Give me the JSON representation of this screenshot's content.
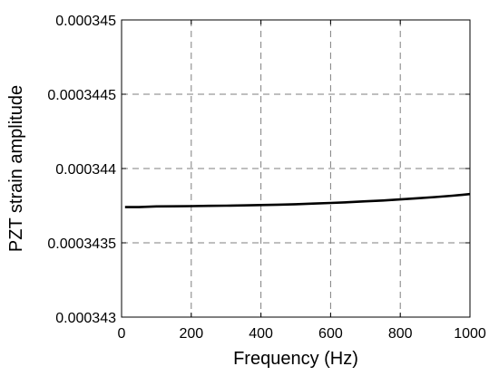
{
  "chart_data": {
    "type": "line",
    "title": "",
    "xlabel": "Frequency (Hz)",
    "ylabel": "PZT strain amplitude",
    "xlim": [
      0,
      1000
    ],
    "ylim": [
      0.000343,
      0.000345
    ],
    "xticks": [
      0,
      200,
      400,
      600,
      800,
      1000
    ],
    "xtick_labels": [
      "0",
      "200",
      "400",
      "600",
      "800",
      "1000"
    ],
    "yticks": [
      0.000343,
      0.0003435,
      0.000344,
      0.0003445,
      0.000345
    ],
    "ytick_labels": [
      "0.000343",
      "0.0003435",
      "0.000344",
      "0.0003445",
      "0.000345"
    ],
    "grid": true,
    "series": [
      {
        "color": "#000000",
        "x": [
          10,
          50,
          100,
          150,
          200,
          250,
          300,
          350,
          400,
          450,
          500,
          550,
          600,
          650,
          700,
          750,
          800,
          850,
          900,
          950,
          1000
        ],
        "y": [
          0.00034374,
          0.00034374,
          0.000343745,
          0.000343746,
          0.000343747,
          0.000343749,
          0.00034375,
          0.000343752,
          0.000343754,
          0.000343757,
          0.00034376,
          0.000343764,
          0.000343768,
          0.000343773,
          0.000343779,
          0.000343785,
          0.000343792,
          0.0003438,
          0.000343808,
          0.000343817,
          0.000343828
        ]
      }
    ]
  }
}
